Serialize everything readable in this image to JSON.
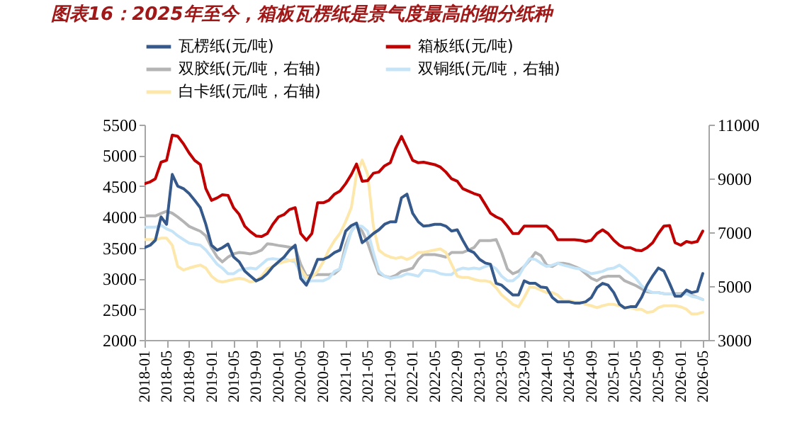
{
  "chart_data": {
    "type": "line",
    "title": "图表16：2025年至今，箱板瓦楞纸是景气度最高的细分纸种",
    "x": [
      "2018-01",
      "2018-02",
      "2018-03",
      "2018-04",
      "2018-05",
      "2018-06",
      "2018-07",
      "2018-08",
      "2018-09",
      "2018-10",
      "2018-11",
      "2018-12",
      "2019-01",
      "2019-02",
      "2019-03",
      "2019-04",
      "2019-05",
      "2019-06",
      "2019-07",
      "2019-08",
      "2019-09",
      "2019-10",
      "2019-11",
      "2019-12",
      "2020-01",
      "2020-02",
      "2020-03",
      "2020-04",
      "2020-05",
      "2020-06",
      "2020-07",
      "2020-08",
      "2020-09",
      "2020-10",
      "2020-11",
      "2020-12",
      "2021-01",
      "2021-02",
      "2021-03",
      "2021-04",
      "2021-05",
      "2021-06",
      "2021-07",
      "2021-08",
      "2021-09",
      "2021-10",
      "2021-11",
      "2021-12",
      "2022-01",
      "2022-02",
      "2022-03",
      "2022-04",
      "2022-05",
      "2022-06",
      "2022-07",
      "2022-08",
      "2022-09",
      "2022-10",
      "2022-11",
      "2022-12",
      "2023-01",
      "2023-02",
      "2023-03",
      "2023-04",
      "2023-05",
      "2023-06",
      "2023-07",
      "2023-08",
      "2023-09",
      "2023-10",
      "2023-11",
      "2023-12",
      "2024-01",
      "2024-02",
      "2024-03",
      "2024-04",
      "2024-05",
      "2024-06",
      "2024-07",
      "2024-08",
      "2024-09",
      "2024-10",
      "2024-11",
      "2024-12",
      "2025-01",
      "2025-02",
      "2025-03",
      "2025-04",
      "2025-05",
      "2025-06",
      "2025-07",
      "2025-08",
      "2025-09",
      "2025-10",
      "2025-11",
      "2025-12",
      "2026-01",
      "2026-02",
      "2026-03",
      "2026-04",
      "2026-05"
    ],
    "xlim": [
      "2018-01",
      "2026-06"
    ],
    "xticks": [
      "2018-01",
      "2018-05",
      "2018-09",
      "2019-01",
      "2019-05",
      "2019-09",
      "2020-01",
      "2020-05",
      "2020-09",
      "2021-01",
      "2021-05",
      "2021-09",
      "2022-01",
      "2022-05",
      "2022-09",
      "2023-01",
      "2023-05",
      "2023-09",
      "2024-01",
      "2024-05",
      "2024-09",
      "2025-01",
      "2025-05",
      "2025-09",
      "2026-01",
      "2026-05"
    ],
    "ylim": [
      2000,
      5500
    ],
    "yticks": [
      2000,
      2500,
      3000,
      3500,
      4000,
      4500,
      5000,
      5500
    ],
    "y2lim": [
      3000,
      11000
    ],
    "y2ticks": [
      3000,
      5000,
      7000,
      9000,
      11000
    ],
    "legend": "top",
    "grid": false,
    "series": [
      {
        "name": "瓦楞纸(元/吨)",
        "color": "#34598a",
        "values": [
          3500,
          3540,
          3620,
          4000,
          3880,
          4690,
          4500,
          4460,
          4380,
          4270,
          4150,
          3880,
          3540,
          3460,
          3500,
          3560,
          3350,
          3270,
          3120,
          3040,
          2960,
          3000,
          3080,
          3190,
          3270,
          3350,
          3460,
          3540,
          3000,
          2890,
          3080,
          3310,
          3310,
          3350,
          3420,
          3460,
          3770,
          3860,
          3900,
          3580,
          3650,
          3730,
          3790,
          3880,
          3920,
          3920,
          4310,
          4370,
          4060,
          3920,
          3850,
          3860,
          3880,
          3880,
          3850,
          3770,
          3790,
          3620,
          3460,
          3420,
          3310,
          3250,
          3230,
          2920,
          2890,
          2810,
          2730,
          2730,
          2960,
          2920,
          2920,
          2860,
          2850,
          2690,
          2620,
          2620,
          2620,
          2600,
          2600,
          2620,
          2690,
          2850,
          2920,
          2890,
          2770,
          2580,
          2520,
          2540,
          2540,
          2690,
          2890,
          3040,
          3170,
          3120,
          2920,
          2710,
          2710,
          2810,
          2770,
          2790,
          3080
        ]
      },
      {
        "name": "箱板纸(元/吨)",
        "color": "#c00000",
        "values": [
          4540,
          4570,
          4620,
          4890,
          4920,
          5330,
          5310,
          5190,
          5040,
          4920,
          4850,
          4460,
          4270,
          4310,
          4360,
          4350,
          4150,
          4040,
          3850,
          3760,
          3690,
          3680,
          3730,
          3880,
          4000,
          4040,
          4120,
          4150,
          3730,
          3620,
          3730,
          4230,
          4230,
          4270,
          4370,
          4420,
          4540,
          4690,
          4860,
          4580,
          4590,
          4710,
          4730,
          4830,
          4880,
          5120,
          5310,
          5120,
          4920,
          4880,
          4890,
          4870,
          4850,
          4810,
          4730,
          4620,
          4580,
          4460,
          4420,
          4380,
          4350,
          4200,
          4060,
          4000,
          3960,
          3850,
          3730,
          3730,
          3850,
          3850,
          3850,
          3850,
          3850,
          3770,
          3630,
          3630,
          3630,
          3630,
          3620,
          3600,
          3620,
          3730,
          3790,
          3730,
          3620,
          3540,
          3500,
          3500,
          3460,
          3450,
          3500,
          3580,
          3730,
          3850,
          3860,
          3580,
          3540,
          3600,
          3580,
          3600,
          3770
        ]
      },
      {
        "name": "双胶纸(元/吨，右轴)",
        "color": "#b4b4b4",
        "axis": "y2",
        "values": [
          7610,
          7610,
          7610,
          7700,
          7780,
          7710,
          7570,
          7400,
          7220,
          7130,
          7040,
          6870,
          6430,
          6080,
          5900,
          6080,
          6200,
          6250,
          6230,
          6200,
          6250,
          6340,
          6570,
          6550,
          6510,
          6480,
          6450,
          6430,
          5810,
          5370,
          5400,
          5430,
          5430,
          5430,
          5460,
          5640,
          6520,
          7040,
          7310,
          7040,
          6600,
          5990,
          5460,
          5370,
          5320,
          5400,
          5550,
          5600,
          5670,
          5990,
          6170,
          6170,
          6170,
          6130,
          6080,
          6250,
          6250,
          6250,
          6340,
          6430,
          6690,
          6690,
          6690,
          6730,
          6250,
          5640,
          5460,
          5550,
          5730,
          5960,
          6250,
          6130,
          5780,
          5730,
          5850,
          5850,
          5810,
          5730,
          5640,
          5460,
          5290,
          5200,
          5330,
          5370,
          5370,
          5370,
          5200,
          5110,
          5020,
          4900,
          4790,
          4760,
          4760,
          4720,
          4710,
          4720,
          4720,
          4760,
          4670,
          4580,
          4500
        ]
      },
      {
        "name": "双铜纸(元/吨，右轴)",
        "color": "#c5e4f7",
        "axis": "y2",
        "values": [
          7190,
          7190,
          7190,
          7260,
          7130,
          7040,
          6870,
          6730,
          6600,
          6560,
          6520,
          6340,
          6080,
          5810,
          5670,
          5460,
          5460,
          5600,
          5640,
          5670,
          5640,
          5810,
          5990,
          6020,
          5990,
          6020,
          5950,
          5900,
          5460,
          5150,
          5200,
          5200,
          5200,
          5290,
          5550,
          5640,
          6340,
          7040,
          7260,
          7220,
          7040,
          6250,
          5550,
          5370,
          5290,
          5330,
          5370,
          5460,
          5420,
          5370,
          5590,
          5570,
          5550,
          5460,
          5430,
          5430,
          5600,
          5670,
          5640,
          5670,
          5640,
          5730,
          5780,
          5640,
          5370,
          5200,
          5200,
          5370,
          5730,
          6020,
          5990,
          5850,
          5730,
          5780,
          5850,
          5780,
          5730,
          5670,
          5640,
          5550,
          5460,
          5500,
          5550,
          5640,
          5670,
          5780,
          5640,
          5460,
          5290,
          5020,
          4850,
          4760,
          4760,
          4720,
          4720,
          4670,
          4670,
          4720,
          4620,
          4580,
          4500
        ]
      },
      {
        "name": "白卡纸(元/吨，右轴)",
        "color": "#fde7aa",
        "axis": "y2",
        "values": [
          6730,
          6730,
          6730,
          6780,
          6780,
          6520,
          5730,
          5600,
          5670,
          5730,
          5780,
          5670,
          5370,
          5200,
          5150,
          5200,
          5250,
          5290,
          5250,
          5150,
          5200,
          5370,
          5640,
          5730,
          5850,
          5900,
          5950,
          5990,
          5640,
          5320,
          5320,
          5550,
          5900,
          6340,
          6690,
          6960,
          7400,
          7920,
          9150,
          9680,
          9150,
          7220,
          6340,
          6170,
          6080,
          6030,
          6080,
          5990,
          6080,
          6250,
          6250,
          6300,
          6340,
          6380,
          6250,
          5810,
          5370,
          5320,
          5320,
          5250,
          5200,
          5200,
          5150,
          4940,
          4670,
          4500,
          4320,
          4230,
          4580,
          4970,
          4940,
          4850,
          4760,
          4760,
          4670,
          4460,
          4460,
          4410,
          4410,
          4320,
          4270,
          4200,
          4270,
          4320,
          4320,
          4270,
          4200,
          4200,
          4140,
          4140,
          4020,
          4050,
          4200,
          4270,
          4270,
          4270,
          4230,
          4140,
          3970,
          3970,
          4030
        ]
      }
    ]
  }
}
